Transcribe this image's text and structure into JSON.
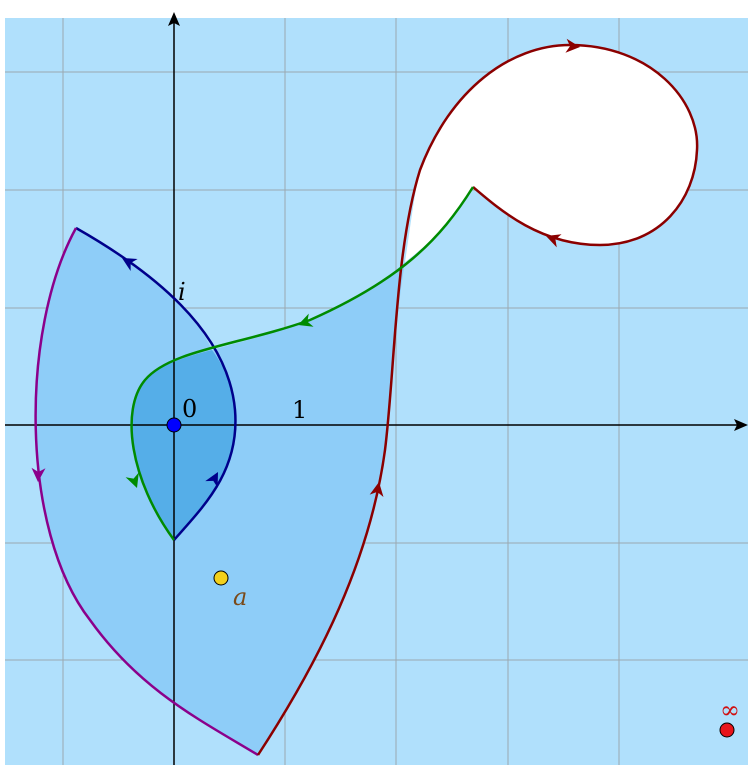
{
  "labels": {
    "i": "i",
    "zero": "0",
    "one": "1",
    "a": "a",
    "infinity": "∞"
  }
}
